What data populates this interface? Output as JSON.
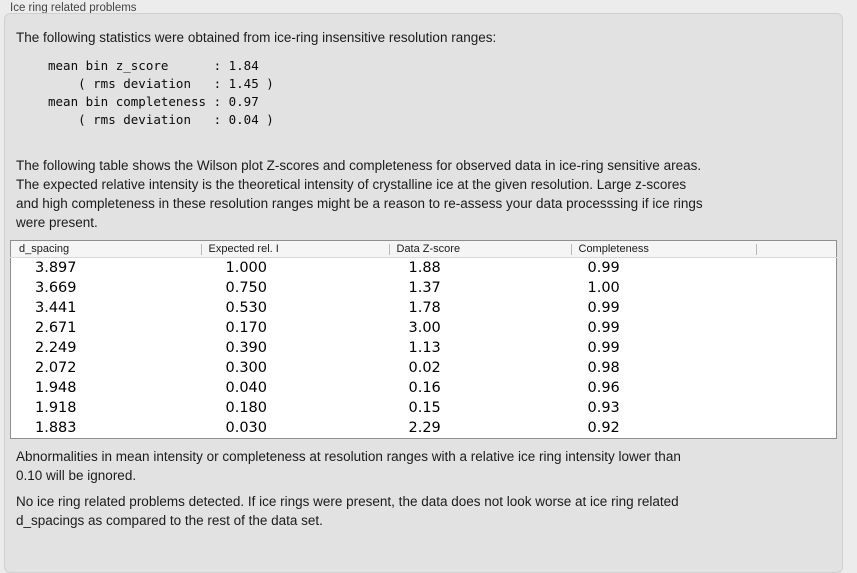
{
  "panel": {
    "title": "Ice ring related problems"
  },
  "summary": {
    "intro": "The following statistics were obtained from ice-ring insensitive resolution ranges:",
    "lines": [
      "mean bin z_score      : 1.84",
      "    ( rms deviation   : 1.45 )",
      "mean bin completeness : 0.97",
      "    ( rms deviation   : 0.04 )"
    ]
  },
  "description": {
    "lines": [
      "The following table shows the Wilson plot Z-scores and completeness for observed data in ice-ring sensitive areas.",
      "The expected relative intensity is the theoretical intensity of crystalline ice at the given resolution. Large z-scores",
      "and high completeness in these resolution ranges might be a reason to re-assess your data processsing if ice rings",
      "were present."
    ]
  },
  "table": {
    "columns": [
      "d_spacing",
      "Expected rel. I",
      "Data Z-score",
      "Completeness"
    ],
    "rows": [
      [
        "3.897",
        "1.000",
        "1.88",
        "0.99"
      ],
      [
        "3.669",
        "0.750",
        "1.37",
        "1.00"
      ],
      [
        "3.441",
        "0.530",
        "1.78",
        "0.99"
      ],
      [
        "2.671",
        "0.170",
        "3.00",
        "0.99"
      ],
      [
        "2.249",
        "0.390",
        "1.13",
        "0.99"
      ],
      [
        "2.072",
        "0.300",
        "0.02",
        "0.98"
      ],
      [
        "1.948",
        "0.040",
        "0.16",
        "0.96"
      ],
      [
        "1.918",
        "0.180",
        "0.15",
        "0.93"
      ],
      [
        "1.883",
        "0.030",
        "2.29",
        "0.92"
      ]
    ]
  },
  "notes": {
    "threshold_lines": [
      "Abnormalities in mean intensity or completeness at resolution ranges with a relative ice ring intensity lower than",
      "0.10 will be ignored."
    ],
    "verdict_lines": [
      "No ice ring related problems detected. If ice rings were present, the data does not look worse at ice ring related",
      "d_spacings as compared to the rest of the data set."
    ]
  },
  "colors": {
    "panel_bg": "#e2e2e2",
    "window_bg": "#ececec",
    "table_header_bg": "#f5f5f5",
    "table_border": "#8f8f8f"
  }
}
